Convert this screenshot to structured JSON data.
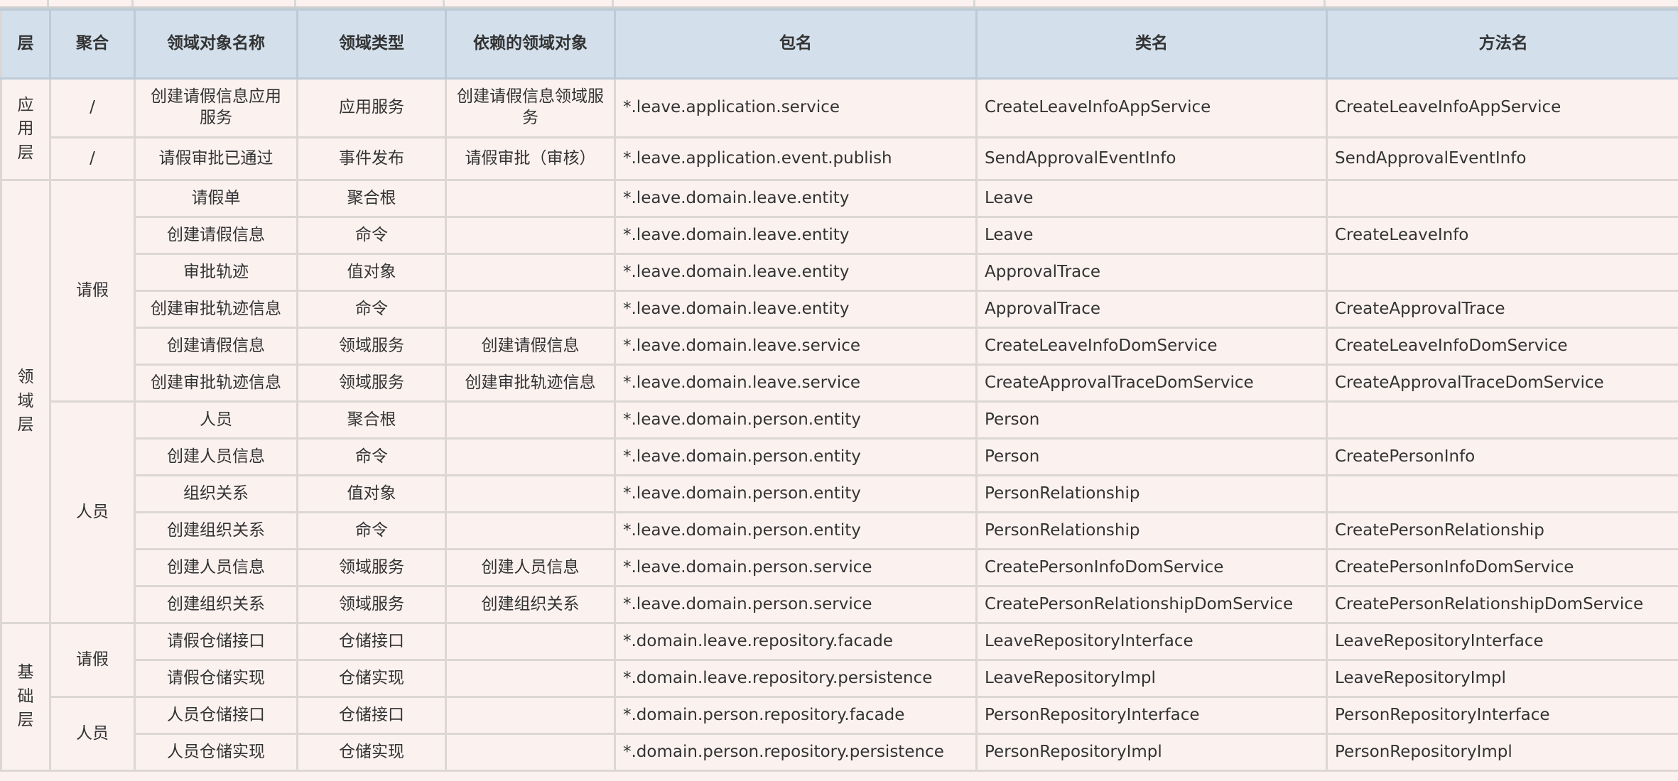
{
  "columns": [
    "层",
    "聚合",
    "领域对象名称",
    "领域类型",
    "依赖的领域对象",
    "包名",
    "类名",
    "方法名"
  ],
  "layers": [
    {
      "name": "应用层",
      "rows": 2
    },
    {
      "name": "领域层",
      "rows": 12
    },
    {
      "name": "基础层",
      "rows": 4
    }
  ],
  "aggregates": [
    {
      "name": "/",
      "rows": 1
    },
    {
      "name": "/",
      "rows": 1
    },
    {
      "name": "请假",
      "rows": 6
    },
    {
      "name": "人员",
      "rows": 6
    },
    {
      "name": "请假",
      "rows": 2
    },
    {
      "name": "人员",
      "rows": 2
    }
  ],
  "rows": [
    [
      "创建请假信息应用服务",
      "应用服务",
      "创建请假信息领域服务",
      "*.leave.application.service",
      "CreateLeaveInfoAppService",
      "CreateLeaveInfoAppService"
    ],
    [
      "请假审批已通过",
      "事件发布",
      "请假审批（审核）",
      "*.leave.application.event.publish",
      "SendApprovalEventInfo",
      "SendApprovalEventInfo"
    ],
    [
      "请假单",
      "聚合根",
      "",
      "*.leave.domain.leave.entity",
      "Leave",
      ""
    ],
    [
      "创建请假信息",
      "命令",
      "",
      "*.leave.domain.leave.entity",
      "Leave",
      "CreateLeaveInfo"
    ],
    [
      "审批轨迹",
      "值对象",
      "",
      "*.leave.domain.leave.entity",
      "ApprovalTrace",
      ""
    ],
    [
      "创建审批轨迹信息",
      "命令",
      "",
      "*.leave.domain.leave.entity",
      "ApprovalTrace",
      "CreateApprovalTrace"
    ],
    [
      "创建请假信息",
      "领域服务",
      "创建请假信息",
      "*.leave.domain.leave.service",
      "CreateLeaveInfoDomService",
      "CreateLeaveInfoDomService"
    ],
    [
      "创建审批轨迹信息",
      "领域服务",
      "创建审批轨迹信息",
      "*.leave.domain.leave.service",
      "CreateApprovalTraceDomService",
      "CreateApprovalTraceDomService"
    ],
    [
      "人员",
      "聚合根",
      "",
      "*.leave.domain.person.entity",
      "Person",
      ""
    ],
    [
      "创建人员信息",
      "命令",
      "",
      "*.leave.domain.person.entity",
      "Person",
      "CreatePersonInfo"
    ],
    [
      "组织关系",
      "值对象",
      "",
      "*.leave.domain.person.entity",
      "PersonRelationship",
      ""
    ],
    [
      "创建组织关系",
      "命令",
      "",
      "*.leave.domain.person.entity",
      "PersonRelationship",
      "CreatePersonRelationship"
    ],
    [
      "创建人员信息",
      "领域服务",
      "创建人员信息",
      "*.leave.domain.person.service",
      "CreatePersonInfoDomService",
      "CreatePersonInfoDomService"
    ],
    [
      "创建组织关系",
      "领域服务",
      "创建组织关系",
      "*.leave.domain.person.service",
      "CreatePersonRelationshipDomService",
      "CreatePersonRelationshipDomService"
    ],
    [
      "请假仓储接口",
      "仓储接口",
      "",
      "*.domain.leave.repository.facade",
      "LeaveRepositoryInterface",
      "LeaveRepositoryInterface"
    ],
    [
      "请假仓储实现",
      "仓储实现",
      "",
      "*.domain.leave.repository.persistence",
      "LeaveRepositoryImpl",
      "LeaveRepositoryImpl"
    ],
    [
      "人员仓储接口",
      "仓储接口",
      "",
      "*.domain.person.repository.facade",
      "PersonRepositoryInterface",
      "PersonRepositoryInterface"
    ],
    [
      "人员仓储实现",
      "仓储实现",
      "",
      "*.domain.person.repository.persistence",
      "PersonRepositoryImpl",
      "PersonRepositoryImpl"
    ]
  ],
  "colors": {
    "header_bg": "#d3e0ec",
    "body_bg": "#fbf2f0",
    "border": "#dcd6d5",
    "text": "#333333"
  }
}
